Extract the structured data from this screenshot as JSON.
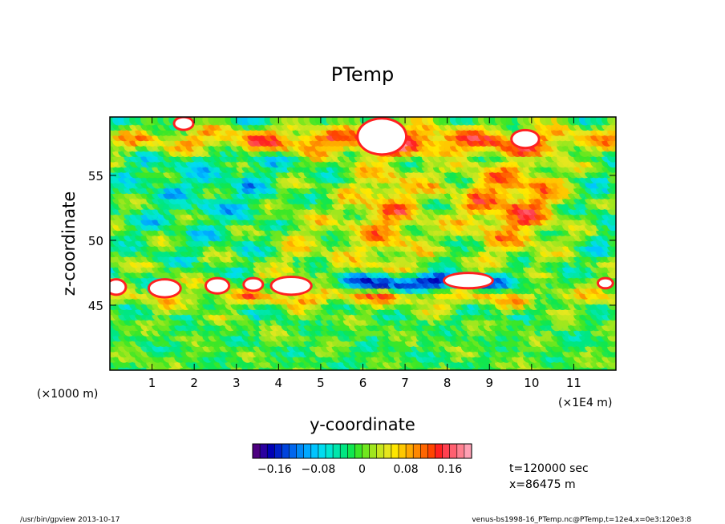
{
  "chart_data": {
    "type": "heatmap",
    "title": "PTemp",
    "xlabel": "y-coordinate",
    "ylabel": "z-coordinate",
    "x_unit_label": "(×1E4 m)",
    "y_unit_label": "(×1000 m)",
    "x_ticks": [
      {
        "value": 1,
        "label": "1"
      },
      {
        "value": 2,
        "label": "2"
      },
      {
        "value": 3,
        "label": "3"
      },
      {
        "value": 4,
        "label": "4"
      },
      {
        "value": 5,
        "label": "5"
      },
      {
        "value": 6,
        "label": "6"
      },
      {
        "value": 7,
        "label": "7"
      },
      {
        "value": 8,
        "label": "8"
      },
      {
        "value": 9,
        "label": "9"
      },
      {
        "value": 10,
        "label": "10"
      },
      {
        "value": 11,
        "label": "11"
      }
    ],
    "y_ticks": [
      {
        "value": 45,
        "label": "45"
      },
      {
        "value": 50,
        "label": "50"
      },
      {
        "value": 55,
        "label": "55"
      }
    ],
    "xlim": [
      0,
      12
    ],
    "ylim": [
      40,
      59.5
    ],
    "value_range": [
      -0.2,
      0.2
    ],
    "colorbar": {
      "ticks": [
        {
          "value": -0.16,
          "label": "−0.16"
        },
        {
          "value": -0.08,
          "label": "−0.08"
        },
        {
          "value": 0,
          "label": "0"
        },
        {
          "value": 0.08,
          "label": "0.08"
        },
        {
          "value": 0.16,
          "label": "0.16"
        }
      ],
      "colors": [
        "#4d0080",
        "#2a00a0",
        "#0000b4",
        "#0020c8",
        "#0044dc",
        "#0066ee",
        "#0088f5",
        "#00a8ff",
        "#00c4ff",
        "#00dcf0",
        "#00e6d2",
        "#00e6ac",
        "#00e682",
        "#10e650",
        "#3ce628",
        "#70e61e",
        "#a0e61e",
        "#c8e61e",
        "#e6e61e",
        "#ffe600",
        "#ffc800",
        "#ffa800",
        "#ff8800",
        "#ff6600",
        "#ff4400",
        "#ff2020",
        "#ff4050",
        "#ff6070",
        "#ff8090",
        "#ffa0b4"
      ]
    },
    "white_regions": [
      {
        "y": 6.45,
        "z": 58.0,
        "ry": 0.55,
        "rz": 1.3
      },
      {
        "y": 0.15,
        "z": 46.4,
        "ry": 0.2,
        "rz": 0.5
      },
      {
        "y": 1.3,
        "z": 46.3,
        "ry": 0.35,
        "rz": 0.6
      },
      {
        "y": 2.55,
        "z": 46.5,
        "ry": 0.25,
        "rz": 0.5
      },
      {
        "y": 3.4,
        "z": 46.6,
        "ry": 0.2,
        "rz": 0.4
      },
      {
        "y": 4.3,
        "z": 46.5,
        "ry": 0.45,
        "rz": 0.6
      },
      {
        "y": 8.5,
        "z": 46.9,
        "ry": 0.55,
        "rz": 0.5
      },
      {
        "y": 9.85,
        "z": 57.8,
        "ry": 0.3,
        "rz": 0.6
      },
      {
        "y": 1.75,
        "z": 59.0,
        "ry": 0.2,
        "rz": 0.4
      },
      {
        "y": 11.75,
        "z": 46.7,
        "ry": 0.15,
        "rz": 0.3
      }
    ]
  },
  "annotations": {
    "time": "t=120000 sec",
    "position": "x=86475 m",
    "footer_left": "/usr/bin/gpview  2013-10-17",
    "footer_right": "venus-bs1998-16_PTemp.nc@PTemp,t=12e4,x=0e3:120e3:8"
  }
}
